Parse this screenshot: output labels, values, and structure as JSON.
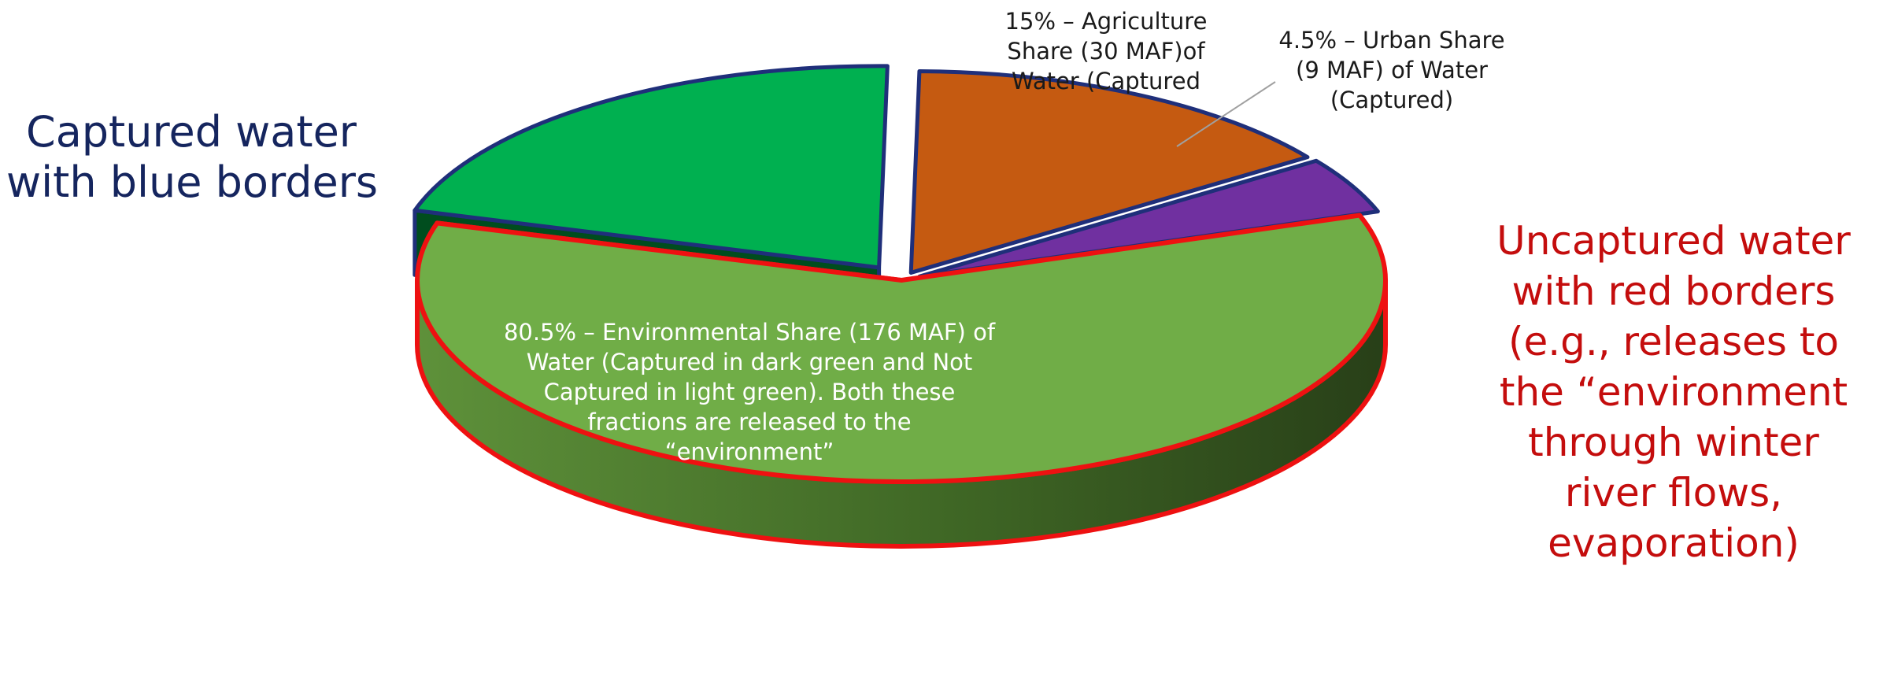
{
  "notes": {
    "captured": [
      "Captured water",
      "with blue borders"
    ],
    "uncaptured": [
      "Uncaptured water",
      "with red borders",
      "(e.g., releases to",
      "the “environment",
      "through winter",
      "river flows,",
      "evaporation)"
    ]
  },
  "chart_data": {
    "type": "pie",
    "style": "3d-exploded",
    "title": "",
    "slices": [
      {
        "key": "agriculture",
        "value": 15,
        "label_lines": [
          "15% – Agriculture",
          "Share (30 MAF)of",
          "Water (Captured"
        ],
        "color": "#c55a11",
        "border": "#1f2f7a",
        "captured": true
      },
      {
        "key": "urban",
        "value": 4.5,
        "label_lines": [
          "4.5% – Urban Share",
          "(9 MAF) of Water",
          "(Captured)"
        ],
        "color": "#7030a0",
        "border": "#1f2f7a",
        "captured": true
      },
      {
        "key": "env-uncaptured",
        "value": 59.8,
        "label_lines": [],
        "color": "#70ad47",
        "border": "#ee1111",
        "captured": false
      },
      {
        "key": "env-captured",
        "value": 20.7,
        "label_lines": [],
        "color": "#00b050",
        "border": "#1f2f7a",
        "captured": true
      }
    ],
    "center_label_lines": [
      "80.5% – Environmental Share (176 MAF) of",
      "Water (Captured in dark green and Not",
      "Captured in light green). Both these",
      "fractions are released to the",
      "“environment”"
    ],
    "legend": "none"
  }
}
